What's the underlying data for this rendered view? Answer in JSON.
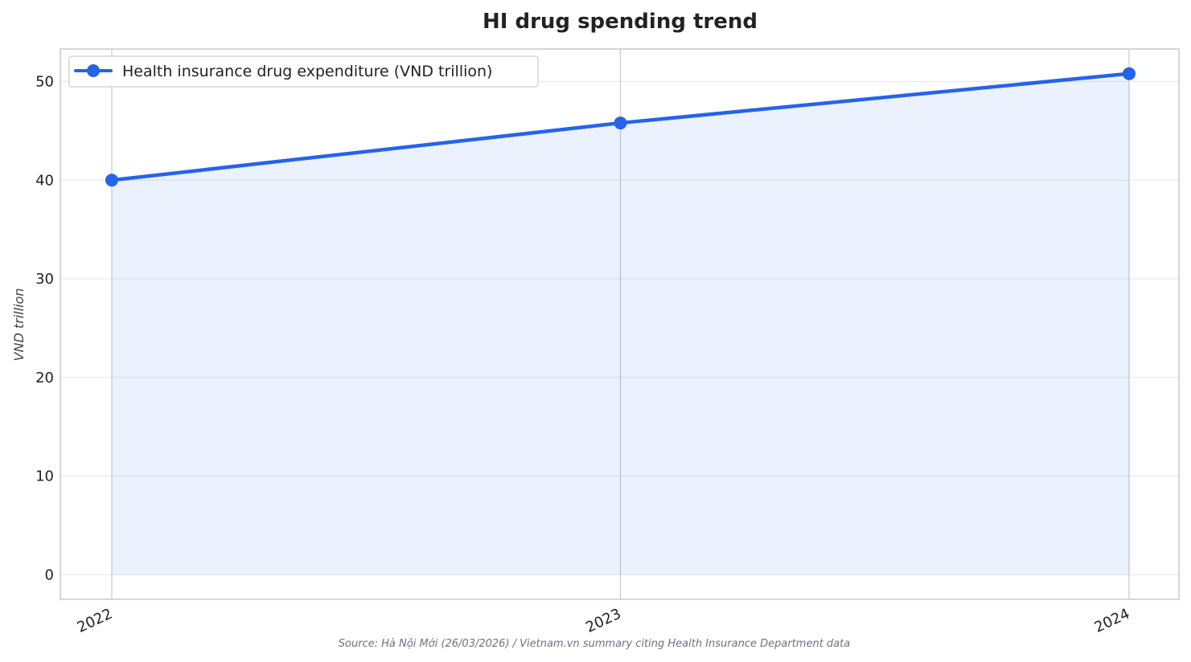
{
  "chart_data": {
    "type": "line",
    "title": "HI drug spending trend",
    "xlabel": "",
    "ylabel": "VND trillion",
    "categories": [
      "2022",
      "2023",
      "2024"
    ],
    "series": [
      {
        "name": "Health insurance drug expenditure (VND trillion)",
        "values": [
          40.0,
          45.8,
          50.8
        ],
        "color": "#2563eb",
        "fill_color": "#2563eb"
      }
    ],
    "ylim": [
      -2.5,
      53.3
    ],
    "yticks": [
      "0",
      "10",
      "20",
      "30",
      "40",
      "50"
    ],
    "grid": true,
    "legend_position": "top-left",
    "source": "Source: Hà Nội Mới (26/03/2026) / Vietnam.vn summary citing Health Insurance Department data"
  }
}
